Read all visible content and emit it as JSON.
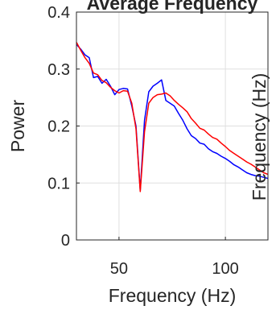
{
  "chart_data": {
    "type": "line",
    "title": "Average Frequency",
    "xlabel": "Frequency (Hz)",
    "ylabel": "Power",
    "right_ylabel": "Frequency (Hz)",
    "xlim": [
      30,
      120
    ],
    "ylim": [
      0,
      0.4
    ],
    "xticks": [
      50,
      100
    ],
    "yticks": [
      0,
      0.1,
      0.2,
      0.3,
      0.4
    ],
    "xtick_labels": [
      "50",
      "100"
    ],
    "ytick_labels": [
      "0",
      "0.1",
      "0.2",
      "0.3",
      "0.4"
    ],
    "grid": true,
    "series": [
      {
        "color": "#0000ff",
        "x": [
          30,
          32,
          34,
          36,
          38,
          40,
          42,
          44,
          46,
          48,
          50,
          52,
          54,
          56,
          58,
          60,
          62,
          64,
          66,
          68,
          70,
          72,
          74,
          76,
          78,
          80,
          82,
          84,
          86,
          88,
          90,
          92,
          94,
          96,
          98,
          100,
          102,
          104,
          106,
          108,
          110,
          112,
          114,
          116,
          118,
          120
        ],
        "y": [
          0.343,
          0.335,
          0.325,
          0.32,
          0.285,
          0.287,
          0.275,
          0.282,
          0.27,
          0.255,
          0.264,
          0.266,
          0.265,
          0.235,
          0.2,
          0.087,
          0.21,
          0.26,
          0.27,
          0.275,
          0.281,
          0.245,
          0.24,
          0.235,
          0.222,
          0.21,
          0.195,
          0.183,
          0.178,
          0.17,
          0.168,
          0.16,
          0.155,
          0.152,
          0.147,
          0.143,
          0.138,
          0.132,
          0.128,
          0.123,
          0.118,
          0.115,
          0.113,
          0.112,
          0.11,
          0.108
        ]
      },
      {
        "color": "#ff0000",
        "x": [
          30,
          32,
          34,
          36,
          38,
          40,
          42,
          44,
          46,
          48,
          50,
          52,
          54,
          56,
          58,
          60,
          62,
          64,
          66,
          68,
          70,
          72,
          74,
          76,
          78,
          80,
          82,
          84,
          86,
          88,
          90,
          92,
          94,
          96,
          98,
          100,
          102,
          104,
          106,
          108,
          110,
          112,
          114,
          116,
          118,
          120
        ],
        "y": [
          0.347,
          0.333,
          0.32,
          0.31,
          0.293,
          0.29,
          0.28,
          0.276,
          0.268,
          0.262,
          0.258,
          0.262,
          0.261,
          0.24,
          0.195,
          0.085,
          0.19,
          0.24,
          0.25,
          0.255,
          0.256,
          0.258,
          0.253,
          0.245,
          0.238,
          0.232,
          0.225,
          0.213,
          0.205,
          0.196,
          0.193,
          0.186,
          0.18,
          0.177,
          0.17,
          0.164,
          0.157,
          0.152,
          0.147,
          0.142,
          0.137,
          0.133,
          0.128,
          0.123,
          0.118,
          0.115
        ]
      }
    ]
  }
}
